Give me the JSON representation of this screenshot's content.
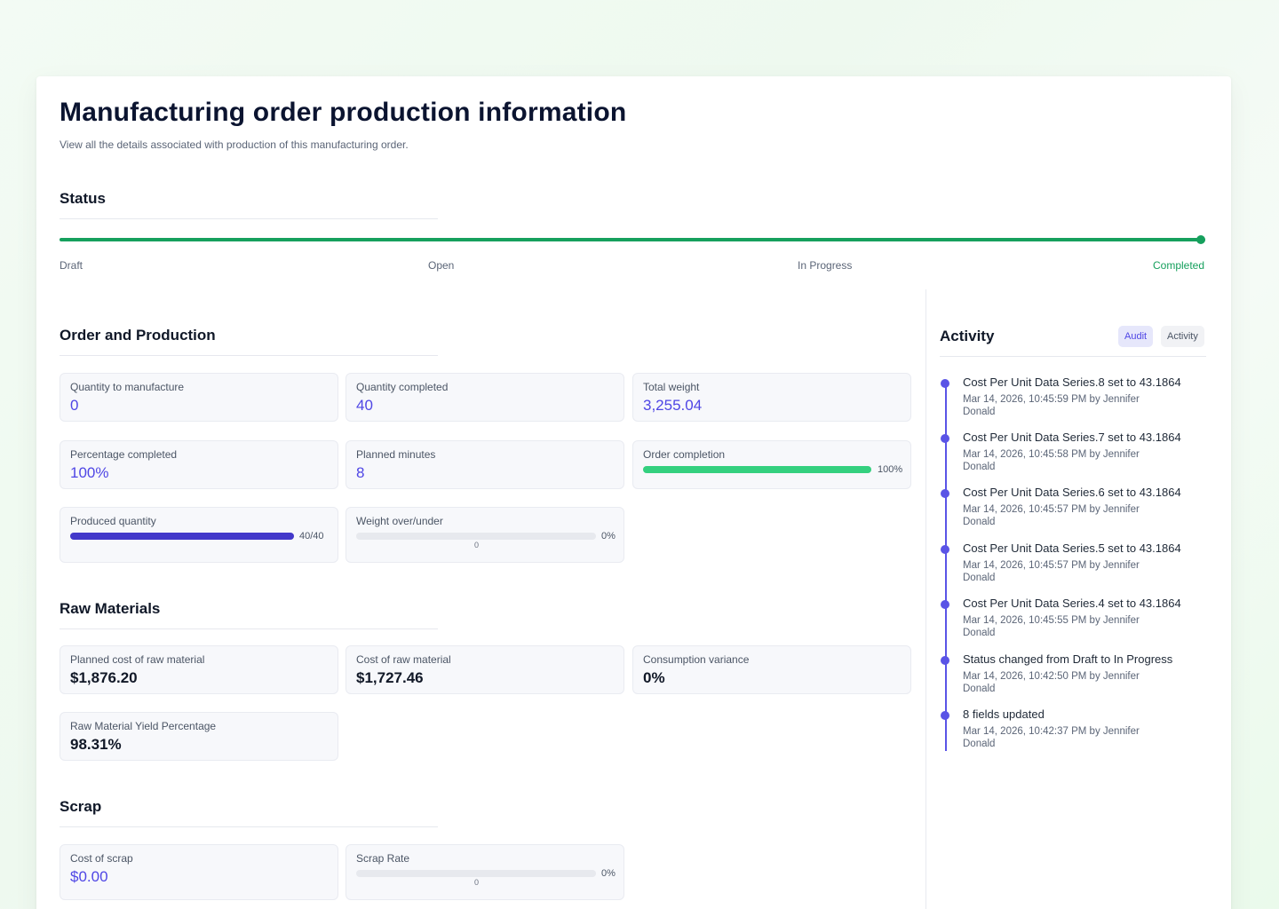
{
  "header": {
    "title": "Manufacturing order production information",
    "subtitle": "View all the details associated with production of this manufacturing order."
  },
  "status": {
    "heading": "Status",
    "steps": [
      "Draft",
      "Open",
      "In Progress",
      "Completed"
    ],
    "current": "Completed",
    "progress_fraction": 1.0,
    "accent_color": "#16a05d"
  },
  "order_production": {
    "heading": "Order and Production",
    "quantity_to_manufacture": {
      "label": "Quantity to manufacture",
      "value": "0"
    },
    "quantity_completed": {
      "label": "Quantity completed",
      "value": "40"
    },
    "total_weight": {
      "label": "Total weight",
      "value": "3,255.04"
    },
    "percentage_completed": {
      "label": "Percentage completed",
      "value": "100%"
    },
    "planned_minutes": {
      "label": "Planned minutes",
      "value": "8"
    },
    "order_completion": {
      "label": "Order completion",
      "value_text": "100%",
      "fraction": 1.0,
      "color": "#34d07f"
    },
    "produced_quantity": {
      "label": "Produced quantity",
      "value_text": "40/40",
      "fraction": 1.0,
      "color": "#4338ca"
    },
    "weight_over_under": {
      "label": "Weight over/under",
      "value_text": "0%",
      "fraction": 0.0,
      "zero_label": "0"
    }
  },
  "raw_materials": {
    "heading": "Raw Materials",
    "planned_cost": {
      "label": "Planned cost of raw material",
      "value": "$1,876.20"
    },
    "cost": {
      "label": "Cost of raw material",
      "value": "$1,727.46"
    },
    "consumption_variance": {
      "label": "Consumption variance",
      "value": "0%"
    },
    "yield_percentage": {
      "label": "Raw Material Yield Percentage",
      "value": "98.31%"
    }
  },
  "scrap": {
    "heading": "Scrap",
    "cost": {
      "label": "Cost of scrap",
      "value": "$0.00"
    },
    "rate": {
      "label": "Scrap Rate",
      "value_text": "0%",
      "fraction": 0.0,
      "zero_label": "0"
    }
  },
  "activity": {
    "heading": "Activity",
    "tabs": {
      "audit": "Audit",
      "activity": "Activity",
      "selected": "Audit"
    },
    "items": [
      {
        "title": "Cost Per Unit Data Series.8 set to 43.1864",
        "meta": "Mar 14, 2026, 10:45:59 PM by Jennifer Donald"
      },
      {
        "title": "Cost Per Unit Data Series.7 set to 43.1864",
        "meta": "Mar 14, 2026, 10:45:58 PM by Jennifer Donald"
      },
      {
        "title": "Cost Per Unit Data Series.6 set to 43.1864",
        "meta": "Mar 14, 2026, 10:45:57 PM by Jennifer Donald"
      },
      {
        "title": "Cost Per Unit Data Series.5 set to 43.1864",
        "meta": "Mar 14, 2026, 10:45:57 PM by Jennifer Donald"
      },
      {
        "title": "Cost Per Unit Data Series.4 set to 43.1864",
        "meta": "Mar 14, 2026, 10:45:55 PM by Jennifer Donald"
      },
      {
        "title": "Status changed from Draft to In Progress",
        "meta": "Mar 14, 2026, 10:42:50 PM by Jennifer Donald"
      },
      {
        "title": "8 fields updated",
        "meta": "Mar 14, 2026, 10:42:37 PM by Jennifer Donald"
      }
    ],
    "accent_color": "#5a54e6"
  }
}
